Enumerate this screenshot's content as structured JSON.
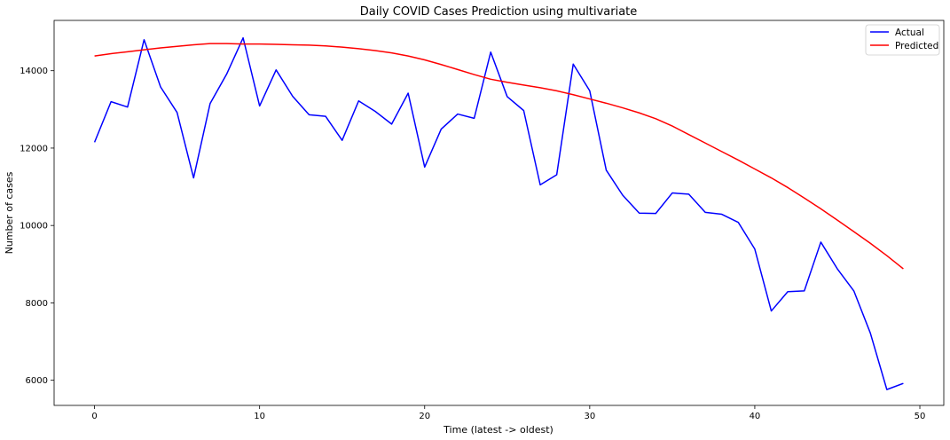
{
  "chart_data": {
    "type": "line",
    "title": "Daily COVID Cases Prediction using multivariate",
    "xlabel": "Time (latest -> oldest)",
    "ylabel": "Number of cases",
    "xlim": [
      -2.45,
      51.45
    ],
    "ylim": [
      5350,
      15300
    ],
    "xticks": [
      0,
      10,
      20,
      30,
      40,
      50
    ],
    "yticks": [
      6000,
      8000,
      10000,
      12000,
      14000
    ],
    "grid": false,
    "legend_position": "top-right",
    "x": [
      0,
      1,
      2,
      3,
      4,
      5,
      6,
      7,
      8,
      9,
      10,
      11,
      12,
      13,
      14,
      15,
      16,
      17,
      18,
      19,
      20,
      21,
      22,
      23,
      24,
      25,
      26,
      27,
      28,
      29,
      30,
      31,
      32,
      33,
      34,
      35,
      36,
      37,
      38,
      39,
      40,
      41,
      42,
      43,
      44,
      45,
      46,
      47,
      48,
      49
    ],
    "series": [
      {
        "name": "Actual",
        "color": "#0000ff",
        "values": [
          12150,
          13200,
          13060,
          14800,
          13580,
          12920,
          11230,
          13150,
          13910,
          14850,
          13090,
          14020,
          13340,
          12860,
          12820,
          12200,
          13220,
          12950,
          12620,
          13420,
          11510,
          12490,
          12880,
          12770,
          14480,
          13330,
          12970,
          11050,
          11310,
          14170,
          13480,
          11430,
          10780,
          10320,
          10310,
          10840,
          10810,
          10340,
          10290,
          10080,
          9390,
          7790,
          8290,
          8310,
          9570,
          8880,
          8310,
          7220,
          5760,
          5920
        ]
      },
      {
        "name": "Predicted",
        "color": "#ff0000",
        "values": [
          14380,
          14440,
          14490,
          14540,
          14590,
          14630,
          14670,
          14700,
          14700,
          14690,
          14690,
          14680,
          14670,
          14660,
          14640,
          14610,
          14570,
          14520,
          14460,
          14380,
          14280,
          14160,
          14030,
          13900,
          13780,
          13700,
          13630,
          13560,
          13480,
          13380,
          13270,
          13160,
          13040,
          12910,
          12760,
          12570,
          12350,
          12130,
          11910,
          11690,
          11460,
          11230,
          10980,
          10710,
          10430,
          10140,
          9840,
          9540,
          9220,
          8880
        ]
      }
    ]
  }
}
